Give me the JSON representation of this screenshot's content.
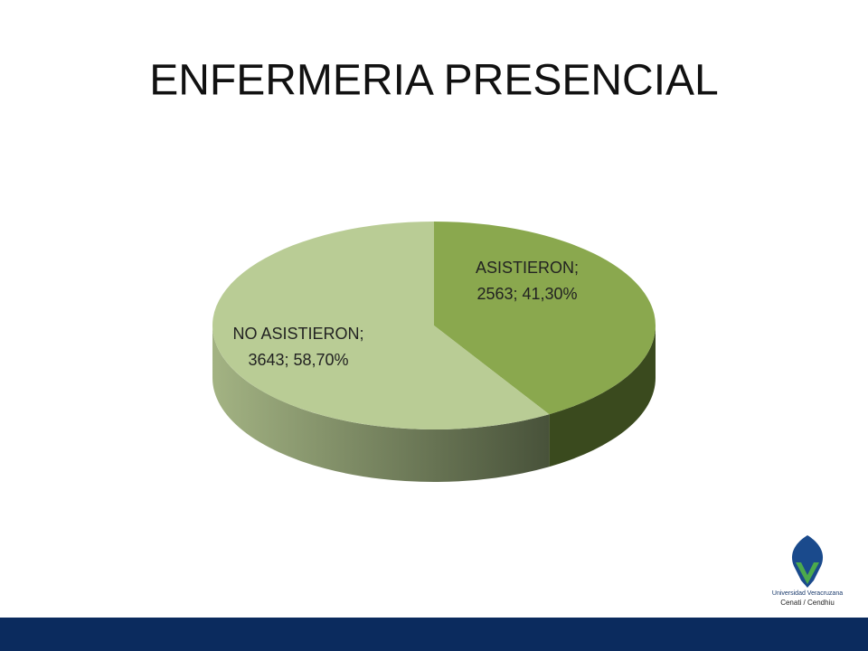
{
  "chart_data": {
    "type": "pie",
    "title": "ENFERMERIA PRESENCIAL",
    "categories": [
      "ASISTIERON;",
      "NO ASISTIERON;"
    ],
    "values": [
      2563,
      3643
    ],
    "value_labels": [
      "2563; 41,30%",
      "3643; 58,70%"
    ],
    "colors": [
      "#8aa84e",
      "#b9cc95"
    ],
    "legend": false
  },
  "footer": {
    "logo_text": "Universidad Veracruzana",
    "logo_subtext": "Cenati / Cendhiu"
  }
}
